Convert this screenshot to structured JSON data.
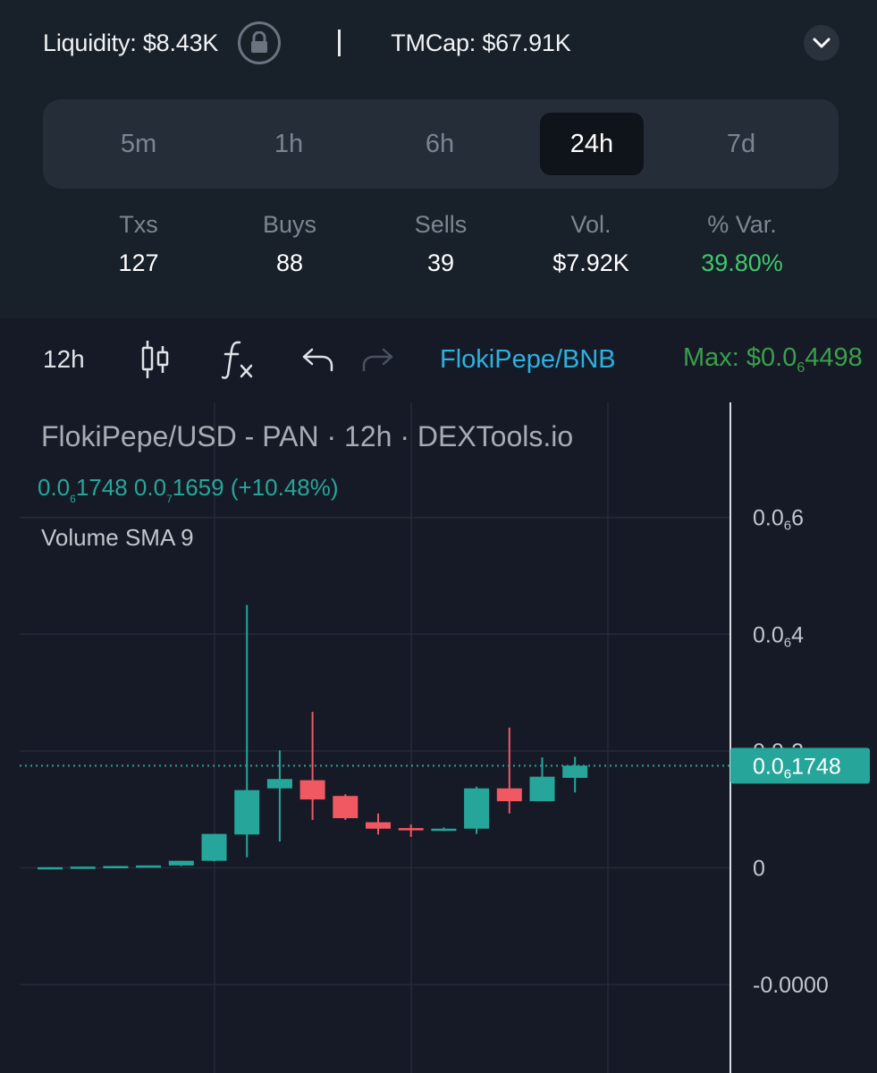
{
  "header": {
    "liquidity": "Liquidity: $8.43K",
    "tmcap": "TMCap: $67.91K"
  },
  "timeframes": [
    {
      "label": "5m",
      "active": false
    },
    {
      "label": "1h",
      "active": false
    },
    {
      "label": "6h",
      "active": false
    },
    {
      "label": "24h",
      "active": true
    },
    {
      "label": "7d",
      "active": false
    }
  ],
  "stats": [
    {
      "label": "Txs",
      "value": "127"
    },
    {
      "label": "Buys",
      "value": "88"
    },
    {
      "label": "Sells",
      "value": "39"
    },
    {
      "label": "Vol.",
      "value": "$7.92K"
    },
    {
      "label": "% Var.",
      "value": "39.80%"
    }
  ],
  "toolbar": {
    "interval": "12h",
    "pair": "FlokiPepe/BNB",
    "max_prefix": "Max: $0.0",
    "max_sub": "6",
    "max_rest": "4498"
  },
  "chart": {
    "title": "FlokiPepe/USD - PAN · 12h · DEXTools.io",
    "legend_a_pre": "0.0",
    "legend_a_sub": "6",
    "legend_a_rest": "1748",
    "legend_b_pre": "0.0",
    "legend_b_sub": "7",
    "legend_b_rest": "1659",
    "legend_change": "(+10.48%)",
    "indicator": "Volume SMA 9",
    "y_ticks": [
      {
        "pre": "0.0",
        "sub": "6",
        "rest": "6",
        "value": 0.6
      },
      {
        "pre": "0.0",
        "sub": "6",
        "rest": "4",
        "value": 0.4
      },
      {
        "pre": "0.0",
        "sub": "6",
        "rest": "2",
        "value": 0.2
      },
      {
        "pre": "0",
        "sub": "",
        "rest": "",
        "value": 0
      },
      {
        "pre": "-0.0000",
        "sub": "",
        "rest": "",
        "value": -0.2
      }
    ],
    "last_price": {
      "pre": "0.0",
      "sub": "6",
      "rest": "1748",
      "value": 0.1748
    },
    "colors": {
      "up": "#26a69a",
      "down": "#f05962",
      "accent": "#2bb2e0"
    }
  },
  "chart_data": {
    "type": "candlestick",
    "title": "FlokiPepe/USD - PAN · 12h · DEXTools.io",
    "y_unit": "price in 1e-6 USD",
    "ylim": [
      -0.22,
      0.74
    ],
    "candles": [
      {
        "o": 0.0,
        "h": 0.001,
        "l": -0.001,
        "c": 0.001
      },
      {
        "o": 0.001,
        "h": 0.002,
        "l": 0.0,
        "c": 0.002
      },
      {
        "o": 0.002,
        "h": 0.003,
        "l": 0.001,
        "c": 0.003
      },
      {
        "o": 0.003,
        "h": 0.004,
        "l": 0.002,
        "c": 0.004
      },
      {
        "o": 0.004,
        "h": 0.012,
        "l": 0.003,
        "c": 0.012
      },
      {
        "o": 0.012,
        "h": 0.058,
        "l": 0.011,
        "c": 0.058
      },
      {
        "o": 0.057,
        "h": 0.45,
        "l": 0.018,
        "c": 0.133
      },
      {
        "o": 0.136,
        "h": 0.201,
        "l": 0.045,
        "c": 0.152
      },
      {
        "o": 0.15,
        "h": 0.267,
        "l": 0.082,
        "c": 0.117
      },
      {
        "o": 0.123,
        "h": 0.126,
        "l": 0.082,
        "c": 0.085
      },
      {
        "o": 0.078,
        "h": 0.093,
        "l": 0.057,
        "c": 0.067
      },
      {
        "o": 0.068,
        "h": 0.074,
        "l": 0.053,
        "c": 0.065
      },
      {
        "o": 0.066,
        "h": 0.069,
        "l": 0.063,
        "c": 0.067
      },
      {
        "o": 0.067,
        "h": 0.139,
        "l": 0.058,
        "c": 0.136
      },
      {
        "o": 0.136,
        "h": 0.24,
        "l": 0.093,
        "c": 0.114
      },
      {
        "o": 0.114,
        "h": 0.189,
        "l": 0.114,
        "c": 0.156
      },
      {
        "o": 0.154,
        "h": 0.19,
        "l": 0.129,
        "c": 0.175
      }
    ],
    "last_price": 0.1748,
    "max_price_label": "0.0₆4498",
    "grid": true
  }
}
